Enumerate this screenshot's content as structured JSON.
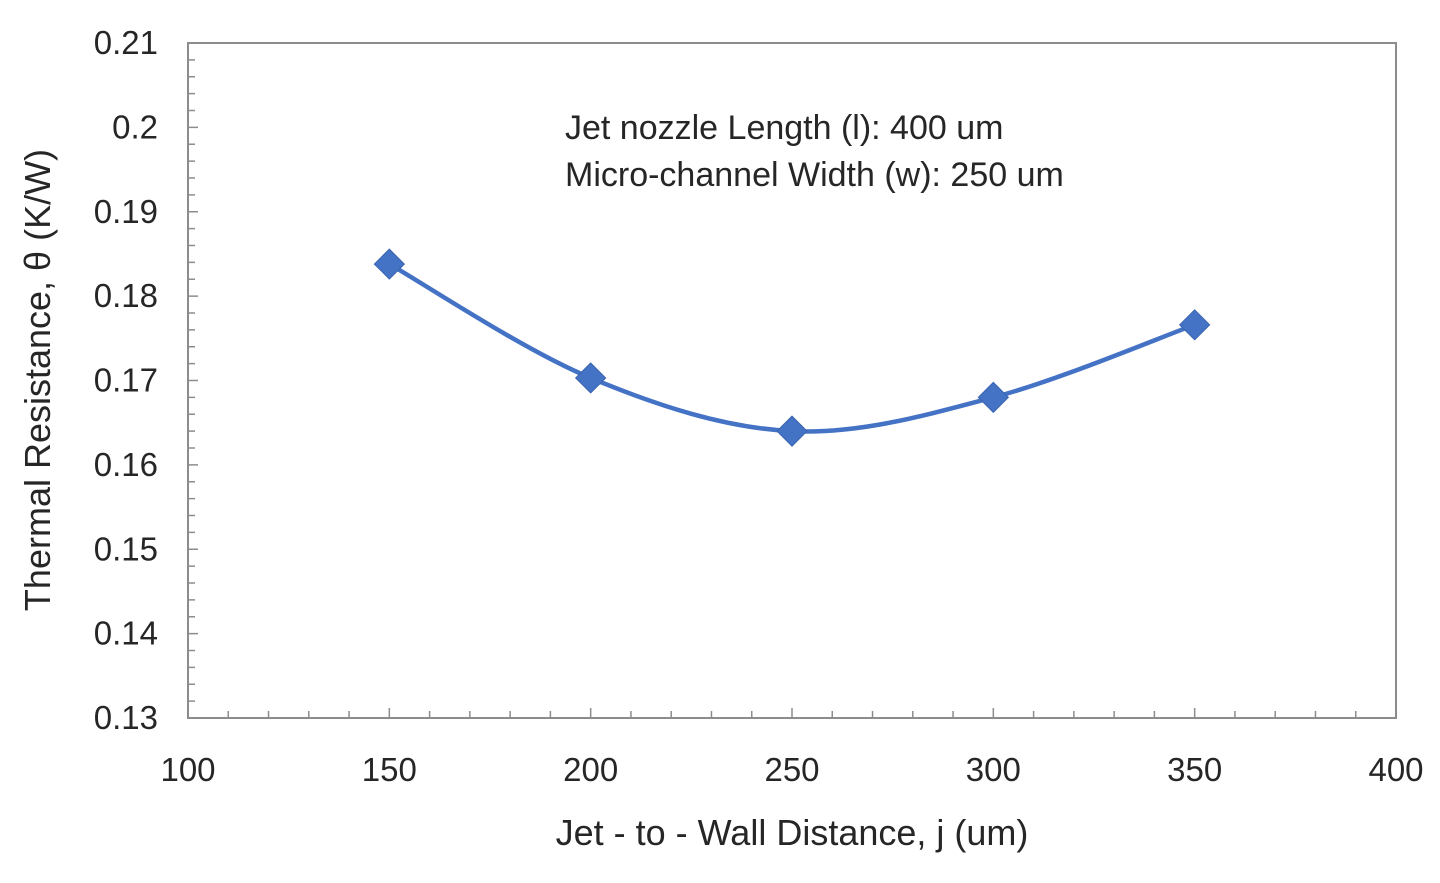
{
  "chart_data": {
    "type": "line",
    "smooth": true,
    "marker": "diamond",
    "title": "",
    "xlabel": "Jet - to - Wall Distance, j (um)",
    "ylabel": "Thermal Resistance, θ (K/W)",
    "xlim": [
      100,
      400
    ],
    "ylim": [
      0.13,
      0.21
    ],
    "xticks": [
      100,
      150,
      200,
      250,
      300,
      350,
      400
    ],
    "xtick_labels": [
      "100",
      "150",
      "200",
      "250",
      "300",
      "350",
      "400"
    ],
    "yticks": [
      0.13,
      0.14,
      0.15,
      0.16,
      0.17,
      0.18,
      0.19,
      0.2,
      0.21
    ],
    "ytick_labels": [
      "0.13",
      "0.14",
      "0.15",
      "0.16",
      "0.17",
      "0.18",
      "0.19",
      "0.2",
      "0.21"
    ],
    "grid": false,
    "legend": "none",
    "annotations": [
      "Jet nozzle Length (l): 400 um",
      "Micro-channel Width (w): 250 um"
    ],
    "series": [
      {
        "x": [
          150,
          200,
          250,
          300,
          350
        ],
        "y": [
          0.1838,
          0.1703,
          0.164,
          0.168,
          0.1766
        ],
        "color": "#4472c4"
      }
    ]
  }
}
